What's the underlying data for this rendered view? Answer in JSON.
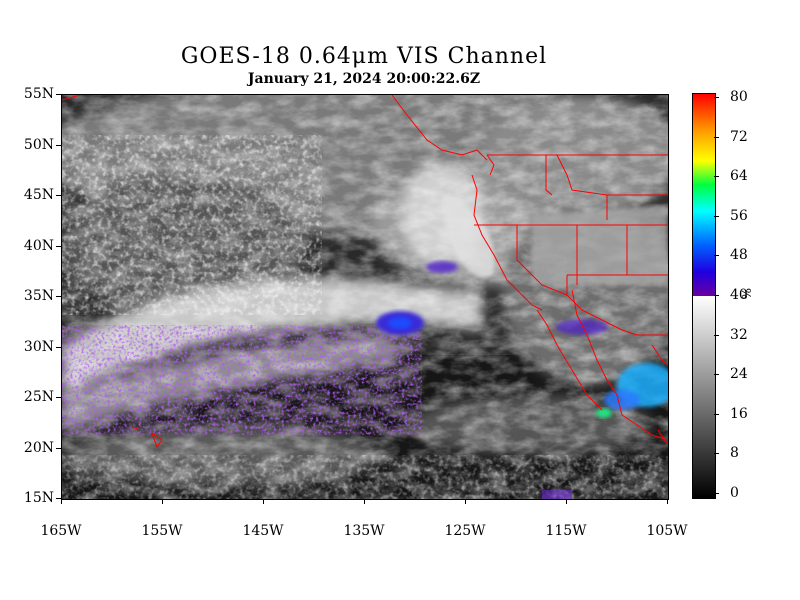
{
  "header": {
    "title": "GOES-18  0.64μm VIS Channel",
    "subtitle": "January 21,  2024 20:00:22.6Z"
  },
  "map": {
    "lat_labels": [
      "55N",
      "50N",
      "45N",
      "40N",
      "35N",
      "30N",
      "25N",
      "20N",
      "15N"
    ],
    "lon_labels": [
      "165W",
      "155W",
      "145W",
      "135W",
      "125W",
      "115W",
      "105W"
    ],
    "boundary_color": "#ff0000",
    "extent": {
      "lon": [
        -165,
        -105
      ],
      "lat": [
        15,
        55
      ]
    }
  },
  "colorbar": {
    "labels": [
      "80",
      "72",
      "64",
      "56",
      "48",
      "40",
      "32",
      "24",
      "16",
      "8",
      "0"
    ],
    "unit": "%",
    "range": [
      0,
      80
    ],
    "threshold": 40
  }
}
